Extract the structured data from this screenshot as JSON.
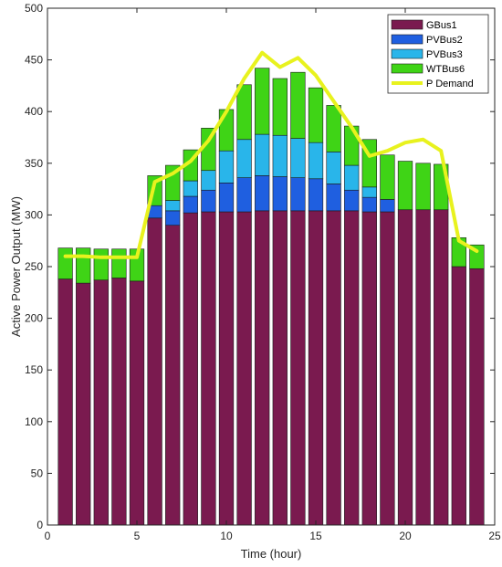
{
  "chart_data": {
    "type": "bar",
    "stacked": true,
    "xlabel": "Time (hour)",
    "ylabel": "Active Power Output (MW)",
    "xlim": [
      0,
      25
    ],
    "ylim": [
      0,
      500
    ],
    "xticks": [
      0,
      5,
      10,
      15,
      20,
      25
    ],
    "yticks": [
      0,
      50,
      100,
      150,
      200,
      250,
      300,
      350,
      400,
      450,
      500
    ],
    "grid": false,
    "legend_position": "top-right",
    "x": [
      1,
      2,
      3,
      4,
      5,
      6,
      7,
      8,
      9,
      10,
      11,
      12,
      13,
      14,
      15,
      16,
      17,
      18,
      19,
      20,
      21,
      22,
      23,
      24
    ],
    "series": [
      {
        "name": "GBus1",
        "color": "#7a1a4f",
        "values": [
          238,
          234,
          237,
          239,
          236,
          297,
          290,
          302,
          303,
          303,
          303,
          304,
          304,
          304,
          304,
          304,
          304,
          303,
          303,
          305,
          305,
          305,
          250,
          248
        ]
      },
      {
        "name": "PVBus2",
        "color": "#1f5fe0",
        "values": [
          0,
          0,
          0,
          0,
          0,
          12,
          14,
          16,
          21,
          28,
          33,
          34,
          33,
          32,
          31,
          26,
          20,
          14,
          12,
          0,
          0,
          0,
          0,
          0
        ]
      },
      {
        "name": "PVBus3",
        "color": "#29b5ea",
        "values": [
          0,
          0,
          0,
          0,
          0,
          0,
          10,
          15,
          19,
          31,
          37,
          40,
          40,
          38,
          35,
          31,
          24,
          10,
          0,
          0,
          0,
          0,
          0,
          0
        ]
      },
      {
        "name": "WTBus6",
        "color": "#3fd416",
        "values": [
          30,
          34,
          30,
          28,
          31,
          29,
          34,
          30,
          41,
          40,
          53,
          64,
          55,
          64,
          53,
          45,
          38,
          46,
          43,
          47,
          45,
          44,
          28,
          23
        ]
      }
    ],
    "line_series": {
      "name": "P Demand",
      "color": "#e8f21e",
      "values": [
        260,
        260,
        259,
        259,
        259,
        332,
        340,
        352,
        372,
        400,
        432,
        457,
        443,
        452,
        435,
        410,
        385,
        357,
        362,
        370,
        373,
        362,
        275,
        265
      ]
    }
  }
}
